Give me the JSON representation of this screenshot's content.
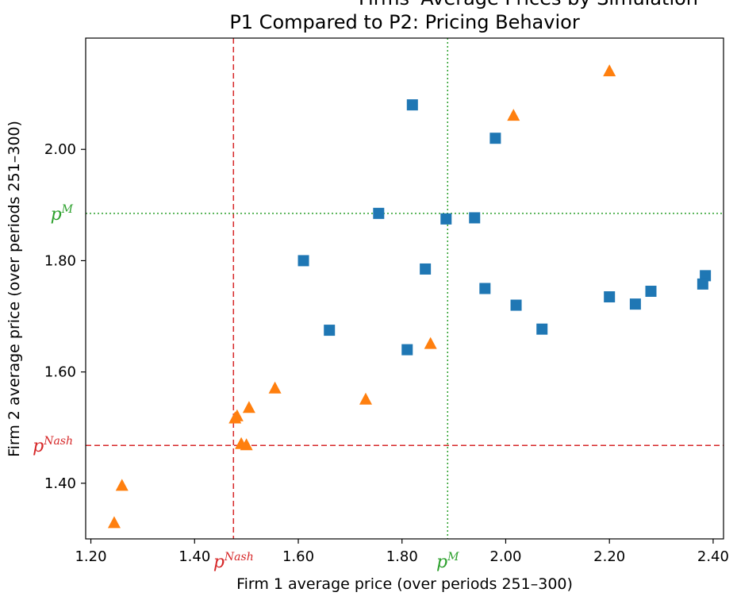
{
  "chart_data": {
    "type": "scatter",
    "title": "P1 Compared to P2: Pricing Behavior",
    "title_cut": "Firms' Average Prices by Simulation",
    "xlabel": "Firm 1 average price (over periods 251–300)",
    "ylabel": "Firm 2 average price (over periods 251–300)",
    "xlim": [
      1.19,
      2.42
    ],
    "ylim": [
      1.3,
      2.2
    ],
    "x_ticks": [
      1.2,
      1.4,
      1.6,
      1.8,
      2.0,
      2.2,
      2.4
    ],
    "y_ticks": [
      1.4,
      1.6,
      1.8,
      2.0
    ],
    "x_tick_labels": [
      "1.20",
      "1.40",
      "1.60",
      "1.80",
      "2.00",
      "2.20",
      "2.40"
    ],
    "y_tick_labels": [
      "1.40",
      "1.60",
      "1.80",
      "2.00"
    ],
    "grid": false,
    "series": [
      {
        "marker": "square",
        "color": "#1f77b4",
        "points": [
          {
            "x": 1.82,
            "y": 2.08
          },
          {
            "x": 1.98,
            "y": 2.02
          },
          {
            "x": 1.755,
            "y": 1.885
          },
          {
            "x": 1.885,
            "y": 1.875
          },
          {
            "x": 1.94,
            "y": 1.877
          },
          {
            "x": 1.61,
            "y": 1.8
          },
          {
            "x": 1.845,
            "y": 1.785
          },
          {
            "x": 1.96,
            "y": 1.75
          },
          {
            "x": 2.02,
            "y": 1.72
          },
          {
            "x": 1.66,
            "y": 1.675
          },
          {
            "x": 1.81,
            "y": 1.64
          },
          {
            "x": 2.07,
            "y": 1.677
          },
          {
            "x": 2.2,
            "y": 1.735
          },
          {
            "x": 2.25,
            "y": 1.722
          },
          {
            "x": 2.28,
            "y": 1.745
          },
          {
            "x": 2.385,
            "y": 1.773
          },
          {
            "x": 2.38,
            "y": 1.758
          }
        ]
      },
      {
        "marker": "triangle",
        "color": "#ff7f0e",
        "points": [
          {
            "x": 2.2,
            "y": 2.14
          },
          {
            "x": 2.015,
            "y": 2.06
          },
          {
            "x": 1.855,
            "y": 1.65
          },
          {
            "x": 1.73,
            "y": 1.55
          },
          {
            "x": 1.555,
            "y": 1.57
          },
          {
            "x": 1.505,
            "y": 1.535
          },
          {
            "x": 1.482,
            "y": 1.52
          },
          {
            "x": 1.478,
            "y": 1.516
          },
          {
            "x": 1.49,
            "y": 1.47
          },
          {
            "x": 1.5,
            "y": 1.468
          },
          {
            "x": 1.26,
            "y": 1.395
          },
          {
            "x": 1.245,
            "y": 1.328
          }
        ]
      }
    ],
    "reference_lines": [
      {
        "axis": "x",
        "value": 1.475,
        "color": "#d62728",
        "style": "dashed",
        "label": "p",
        "sup": "Nash"
      },
      {
        "axis": "x",
        "value": 1.888,
        "color": "#2ca02c",
        "style": "dotted",
        "label": "p",
        "sup": "M"
      },
      {
        "axis": "y",
        "value": 1.468,
        "color": "#d62728",
        "style": "dashed",
        "label": "p",
        "sup": "Nash"
      },
      {
        "axis": "y",
        "value": 1.885,
        "color": "#2ca02c",
        "style": "dotted",
        "label": "p",
        "sup": "M"
      }
    ]
  }
}
